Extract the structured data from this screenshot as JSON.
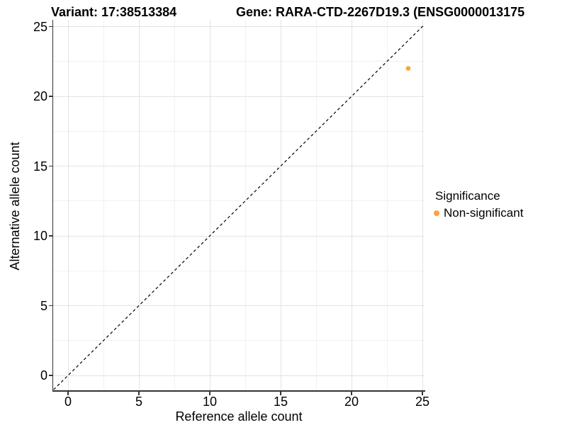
{
  "figure": {
    "title_left": "Variant: 17:38513384",
    "title_right": "Gene: RARA-CTD-2267D19.3 (ENSG0000013175",
    "x_axis": {
      "label": "Reference allele count"
    },
    "y_axis": {
      "label": "Alternative allele count"
    },
    "legend": {
      "title": "Significance",
      "items": [
        {
          "label": "Non-significant",
          "color": "#FAA43A",
          "shape": "circle"
        }
      ]
    }
  },
  "chart_data": {
    "type": "scatter",
    "title": "Variant: 17:38513384 | Gene: RARA-CTD-2267D19.3 (ENSG0000013175",
    "xlabel": "Reference allele count",
    "ylabel": "Alternative allele count",
    "xlim": [
      -1.05,
      25.15
    ],
    "ylim": [
      -1.1,
      25.5
    ],
    "x_major_ticks": [
      0,
      5,
      10,
      15,
      20,
      25
    ],
    "y_major_ticks": [
      0,
      5,
      10,
      15,
      20,
      25
    ],
    "grid": true,
    "minor_gridlines": true,
    "legend_position": "right",
    "reference_line": {
      "type": "identity_y_equals_x",
      "style": "dashed",
      "color": "#000000"
    },
    "series": [
      {
        "name": "Non-significant",
        "color": "#FAA43A",
        "points": [
          {
            "x": 24,
            "y": 22
          }
        ]
      }
    ]
  },
  "colors": {
    "grid_major": "#E3E3E3",
    "grid_minor": "#F1F1F1",
    "axis": "#333333",
    "text": "#000000",
    "background": "#FFFFFF"
  }
}
